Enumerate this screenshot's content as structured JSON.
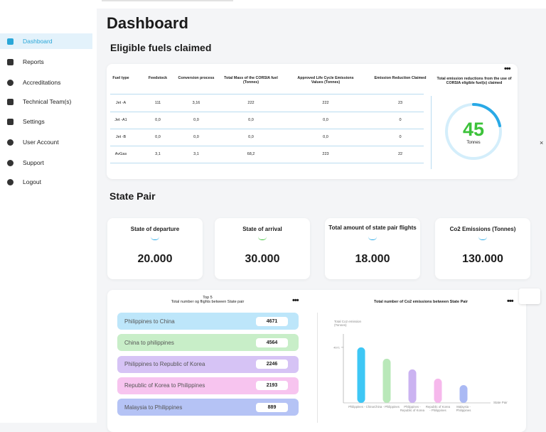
{
  "sidebar": {
    "items": [
      "Dashboard",
      "Reports",
      "Accreditations",
      "Technical Team(s)",
      "Settings",
      "User Account",
      "Support",
      "Logout"
    ]
  },
  "header": {
    "title": "Dashboard"
  },
  "fuels": {
    "title": "Eligible fuels claimed",
    "table": {
      "columns": [
        "Fuel type",
        "Feedstock",
        "Conversion process",
        "Total Mass of the CORSIA fuel (Tonnes)",
        "Approved Life Cycle Emissions Values (Tonnes)",
        "Emission Reduction Claimed"
      ],
      "rows": [
        [
          "Jet -A",
          "111",
          "3,16",
          "222",
          "222",
          "23"
        ],
        [
          "Jet -A1",
          "0,0",
          "0,0",
          "0,0",
          "0,0",
          "0"
        ],
        [
          "Jet -B",
          "0,0",
          "0,0",
          "0,0",
          "0,0",
          "0"
        ],
        [
          "AvGas",
          "3,1",
          "3,1",
          "68,2",
          "223",
          "22"
        ]
      ]
    },
    "total": {
      "label": "Total emission reductions from the use of CORSIA eligible fuel(s) claimed",
      "value": "45",
      "unit": "Tonnes"
    }
  },
  "state_pair": {
    "title": "State Pair",
    "cards": [
      {
        "label": "State of departure",
        "value": "20.000"
      },
      {
        "label": "State of arrival",
        "value": "30.000"
      },
      {
        "label": "Total amount of state pair flights",
        "value": "18.000"
      },
      {
        "label": "Co2 Emissions (Tonnes)",
        "value": "130.000"
      }
    ]
  },
  "top5": {
    "title": "Top 5",
    "subtitle": "Total number og flights between State pair",
    "items": [
      {
        "name": "Philippines to China",
        "value": "4671"
      },
      {
        "name": "China to philippines",
        "value": "4564"
      },
      {
        "name": "Philippines to Republic of Korea",
        "value": "2246"
      },
      {
        "name": "Republic of Korea to Philippines",
        "value": "2193"
      },
      {
        "name": "Malaysia to Philippines",
        "value": "889"
      }
    ]
  },
  "chart_data": {
    "type": "bar",
    "title": "Total number of Co2 emissions between State Pair",
    "y_label": "Total Co2 emission (Tonnes)",
    "x_label": "State Pair",
    "categories": [
      "Philippines - China",
      "China - Philippines",
      "Philippines - Republic of Korea",
      "Republic of Korea - Philippines",
      "Malaysia - Philippines"
    ],
    "series": [
      {
        "name": "Co2 emissions",
        "colors": [
          "#3ec7f5",
          "#b9e8b9",
          "#cbb3f1",
          "#f6b8ec",
          "#aab9f4"
        ],
        "values": [
          4671,
          3714,
          2815,
          2037,
          1497
        ]
      }
    ],
    "ylim": [
      0,
      5800
    ],
    "yticks": [
      4671
    ]
  }
}
